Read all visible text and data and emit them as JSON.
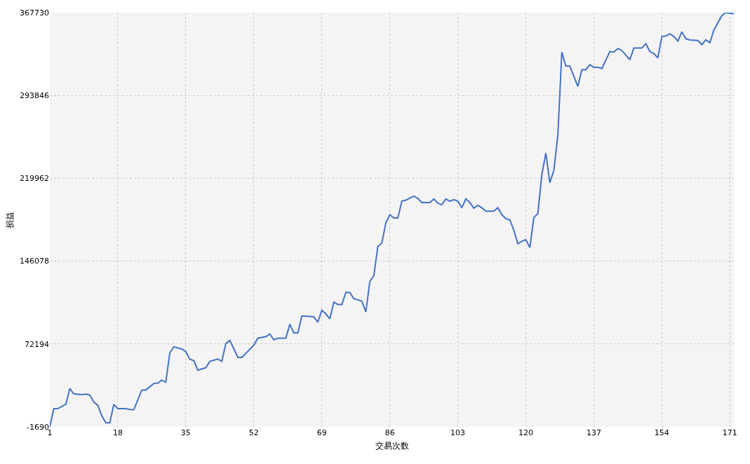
{
  "chart_data": {
    "type": "line",
    "xlabel": "交易次数",
    "ylabel": "损益",
    "xlim": [
      1,
      172
    ],
    "xticks": [
      1,
      18,
      35,
      52,
      69,
      86,
      103,
      120,
      137,
      154,
      171
    ],
    "ylim": [
      -1690,
      367730
    ],
    "yticks": [
      -1690,
      72194,
      146078,
      219962,
      293846,
      367730
    ],
    "grid": true,
    "marker": "none",
    "line_style": "solid",
    "series": [
      {
        "color": "#4472c4",
        "x": [
          1,
          2,
          3,
          5,
          6,
          7,
          9,
          10,
          11,
          12,
          13,
          14,
          15,
          16,
          17,
          18,
          20,
          21,
          22,
          24,
          25,
          27,
          28,
          29,
          30,
          31,
          32,
          34,
          35,
          36,
          37,
          38,
          40,
          41,
          43,
          44,
          45,
          46,
          47,
          48,
          49,
          50,
          52,
          53,
          55,
          56,
          57,
          58,
          60,
          61,
          62,
          63,
          64,
          65,
          67,
          68,
          69,
          70,
          71,
          72,
          73,
          74,
          75,
          76,
          77,
          79,
          80,
          81,
          82,
          83,
          84,
          85,
          86,
          87,
          88,
          89,
          90,
          92,
          93,
          94,
          96,
          97,
          98,
          99,
          100,
          101,
          102,
          103,
          104,
          105,
          106,
          107,
          108,
          109,
          110,
          112,
          113,
          114,
          115,
          116,
          117,
          118,
          119,
          120,
          121,
          122,
          123,
          124,
          125,
          126,
          127,
          128,
          129,
          130,
          131,
          133,
          134,
          135,
          136,
          137,
          138,
          139,
          141,
          142,
          143,
          144,
          146,
          147,
          149,
          150,
          151,
          152,
          153,
          154,
          155,
          156,
          157,
          158,
          159,
          160,
          161,
          163,
          164,
          165,
          166,
          167,
          169,
          170,
          171,
          172
        ],
        "values": [
          -1690,
          14500,
          14500,
          18400,
          32500,
          27700,
          27100,
          27500,
          26700,
          20500,
          17400,
          8100,
          1900,
          1900,
          18400,
          14600,
          14600,
          13800,
          13600,
          31200,
          31200,
          37000,
          37400,
          39900,
          38100,
          64300,
          69700,
          67700,
          65400,
          58700,
          57300,
          48800,
          51100,
          56700,
          58700,
          56700,
          72600,
          75300,
          68000,
          60200,
          60200,
          63900,
          71100,
          77400,
          78800,
          81100,
          75900,
          77400,
          77400,
          89800,
          82100,
          82100,
          97000,
          97000,
          96400,
          91600,
          102200,
          99100,
          94600,
          109500,
          107400,
          107400,
          118200,
          118200,
          112600,
          110500,
          100800,
          128000,
          133200,
          159100,
          162200,
          180200,
          187500,
          184600,
          184600,
          199500,
          200500,
          204000,
          202000,
          198400,
          198400,
          201600,
          197800,
          196400,
          201600,
          199500,
          200900,
          199500,
          193700,
          201600,
          198400,
          193300,
          195900,
          193700,
          190600,
          190600,
          193700,
          187500,
          184000,
          182900,
          173600,
          161600,
          163700,
          165300,
          158100,
          185000,
          188500,
          223300,
          242500,
          216100,
          227000,
          258500,
          332600,
          320100,
          320100,
          301900,
          316800,
          316800,
          321200,
          318900,
          318900,
          317900,
          333000,
          332600,
          335700,
          334000,
          325700,
          336100,
          336100,
          340100,
          333000,
          331300,
          327400,
          346400,
          346900,
          348900,
          346400,
          342300,
          350600,
          344400,
          343400,
          342900,
          339200,
          343400,
          340900,
          352100,
          365100,
          367730,
          367300,
          366700
        ]
      }
    ]
  }
}
